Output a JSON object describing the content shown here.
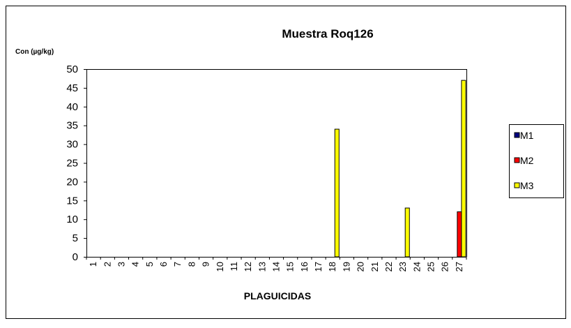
{
  "chart_data": {
    "type": "bar",
    "title": "Muestra Roq126",
    "y_label": "Con (µg/kg)",
    "x_label": "PLAGUICIDAS",
    "categories": [
      "1",
      "2",
      "3",
      "4",
      "5",
      "6",
      "7",
      "8",
      "9",
      "10",
      "11",
      "12",
      "13",
      "14",
      "15",
      "16",
      "17",
      "18",
      "19",
      "20",
      "21",
      "22",
      "23",
      "24",
      "25",
      "26",
      "27"
    ],
    "series": [
      {
        "name": "M1",
        "color": "#000080",
        "values": [
          0,
          0,
          0,
          0,
          0,
          0,
          0,
          0,
          0,
          0,
          0,
          0,
          0,
          0,
          0,
          0,
          0,
          0,
          0,
          0,
          0,
          0,
          0,
          0,
          0,
          0,
          0
        ]
      },
      {
        "name": "M2",
        "color": "#ff0000",
        "values": [
          0,
          0,
          0,
          0,
          0,
          0,
          0,
          0,
          0,
          0,
          0,
          0,
          0,
          0,
          0,
          0,
          0,
          0,
          0,
          0,
          0,
          0,
          0,
          0,
          0,
          0,
          12
        ]
      },
      {
        "name": "M3",
        "color": "#ffff00",
        "values": [
          0,
          0,
          0,
          0,
          0,
          0,
          0,
          0,
          0,
          0,
          0,
          0,
          0,
          0,
          0,
          0,
          0,
          34,
          0,
          0,
          0,
          0,
          13,
          0,
          0,
          0,
          47
        ]
      }
    ],
    "ylim": [
      0,
      50
    ],
    "yticks": [
      0,
      5,
      10,
      15,
      20,
      25,
      30,
      35,
      40,
      45,
      50
    ],
    "legend": "right"
  }
}
